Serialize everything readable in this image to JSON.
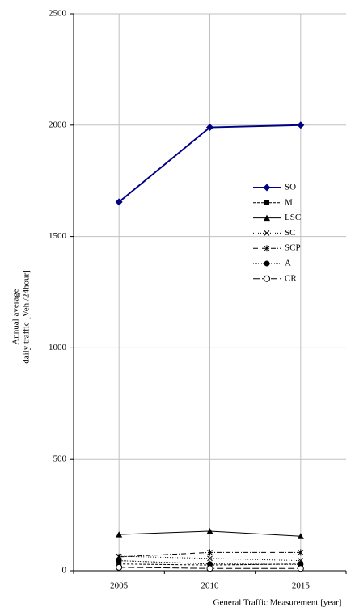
{
  "chart_data": {
    "type": "line",
    "ylabel": [
      "Annual average",
      "daily traffic [Veh./24hour]"
    ],
    "xlabel": "General Traffic Measurement [year]",
    "categories": [
      "2005",
      "2010",
      "2015"
    ],
    "ylim": [
      0,
      2500
    ],
    "yticks": [
      0,
      500,
      1000,
      1500,
      2000,
      2500
    ],
    "grid": true,
    "series": [
      {
        "name": "SO",
        "color": "#000080",
        "values": [
          1655,
          1990,
          2000
        ]
      },
      {
        "name": "M",
        "color": "#000000",
        "values": [
          30,
          25,
          30
        ]
      },
      {
        "name": "LSC",
        "color": "#000000",
        "values": [
          163,
          178,
          155
        ]
      },
      {
        "name": "SC",
        "color": "#000000",
        "values": [
          65,
          55,
          45
        ]
      },
      {
        "name": "SCP",
        "color": "#000000",
        "values": [
          62,
          82,
          82
        ]
      },
      {
        "name": "A",
        "color": "#000000",
        "values": [
          45,
          30,
          28
        ]
      },
      {
        "name": "CR",
        "color": "#000000",
        "values": [
          15,
          10,
          10
        ]
      }
    ]
  }
}
